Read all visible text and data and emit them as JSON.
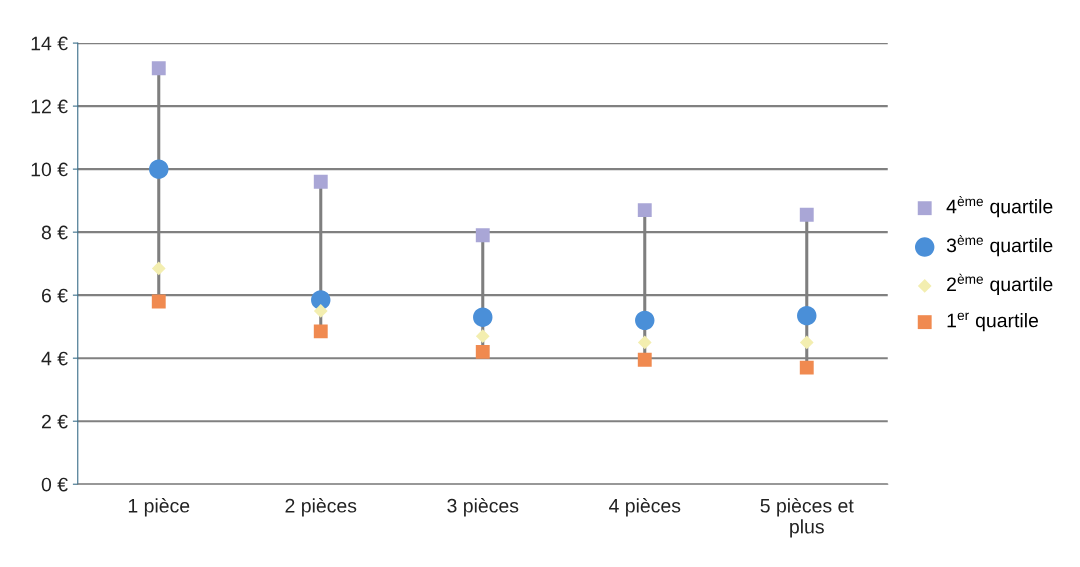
{
  "chart_data": {
    "type": "scatter",
    "categories": [
      "1 pièce",
      "2 pièces",
      "3 pièces",
      "4 pièces",
      "5 pièces et\nplus"
    ],
    "series": [
      {
        "name": "4$^{ème}$ quartile",
        "color": "#a9a6d6",
        "marker": "square",
        "values": [
          13.2,
          9.6,
          7.9,
          8.7,
          8.55
        ]
      },
      {
        "name": "3$^{ème}$ quartile",
        "color": "#4a8fd8",
        "marker": "circle",
        "values": [
          10.0,
          5.85,
          5.3,
          5.2,
          5.35
        ]
      },
      {
        "name": "2$^{ème}$ quartile",
        "color": "#f3eeb0",
        "marker": "diamond",
        "values": [
          6.85,
          5.5,
          4.7,
          4.5,
          4.5
        ]
      },
      {
        "name": "1$^{er}$ quartile",
        "color": "#f08a50",
        "marker": "square",
        "values": [
          5.8,
          4.85,
          4.2,
          3.95,
          3.7
        ]
      }
    ],
    "ylim": [
      0,
      14
    ],
    "yticks": [
      {
        "value": 0,
        "label": "0 €"
      },
      {
        "value": 2,
        "label": "2 €"
      },
      {
        "value": 4,
        "label": "4 €"
      },
      {
        "value": 6,
        "label": "6 €"
      },
      {
        "value": 8,
        "label": "8 €"
      },
      {
        "value": 10,
        "label": "10 €"
      },
      {
        "value": 12,
        "label": "12 €"
      },
      {
        "value": 14,
        "label": "14 €"
      }
    ],
    "grid": "y",
    "legend": "right"
  }
}
